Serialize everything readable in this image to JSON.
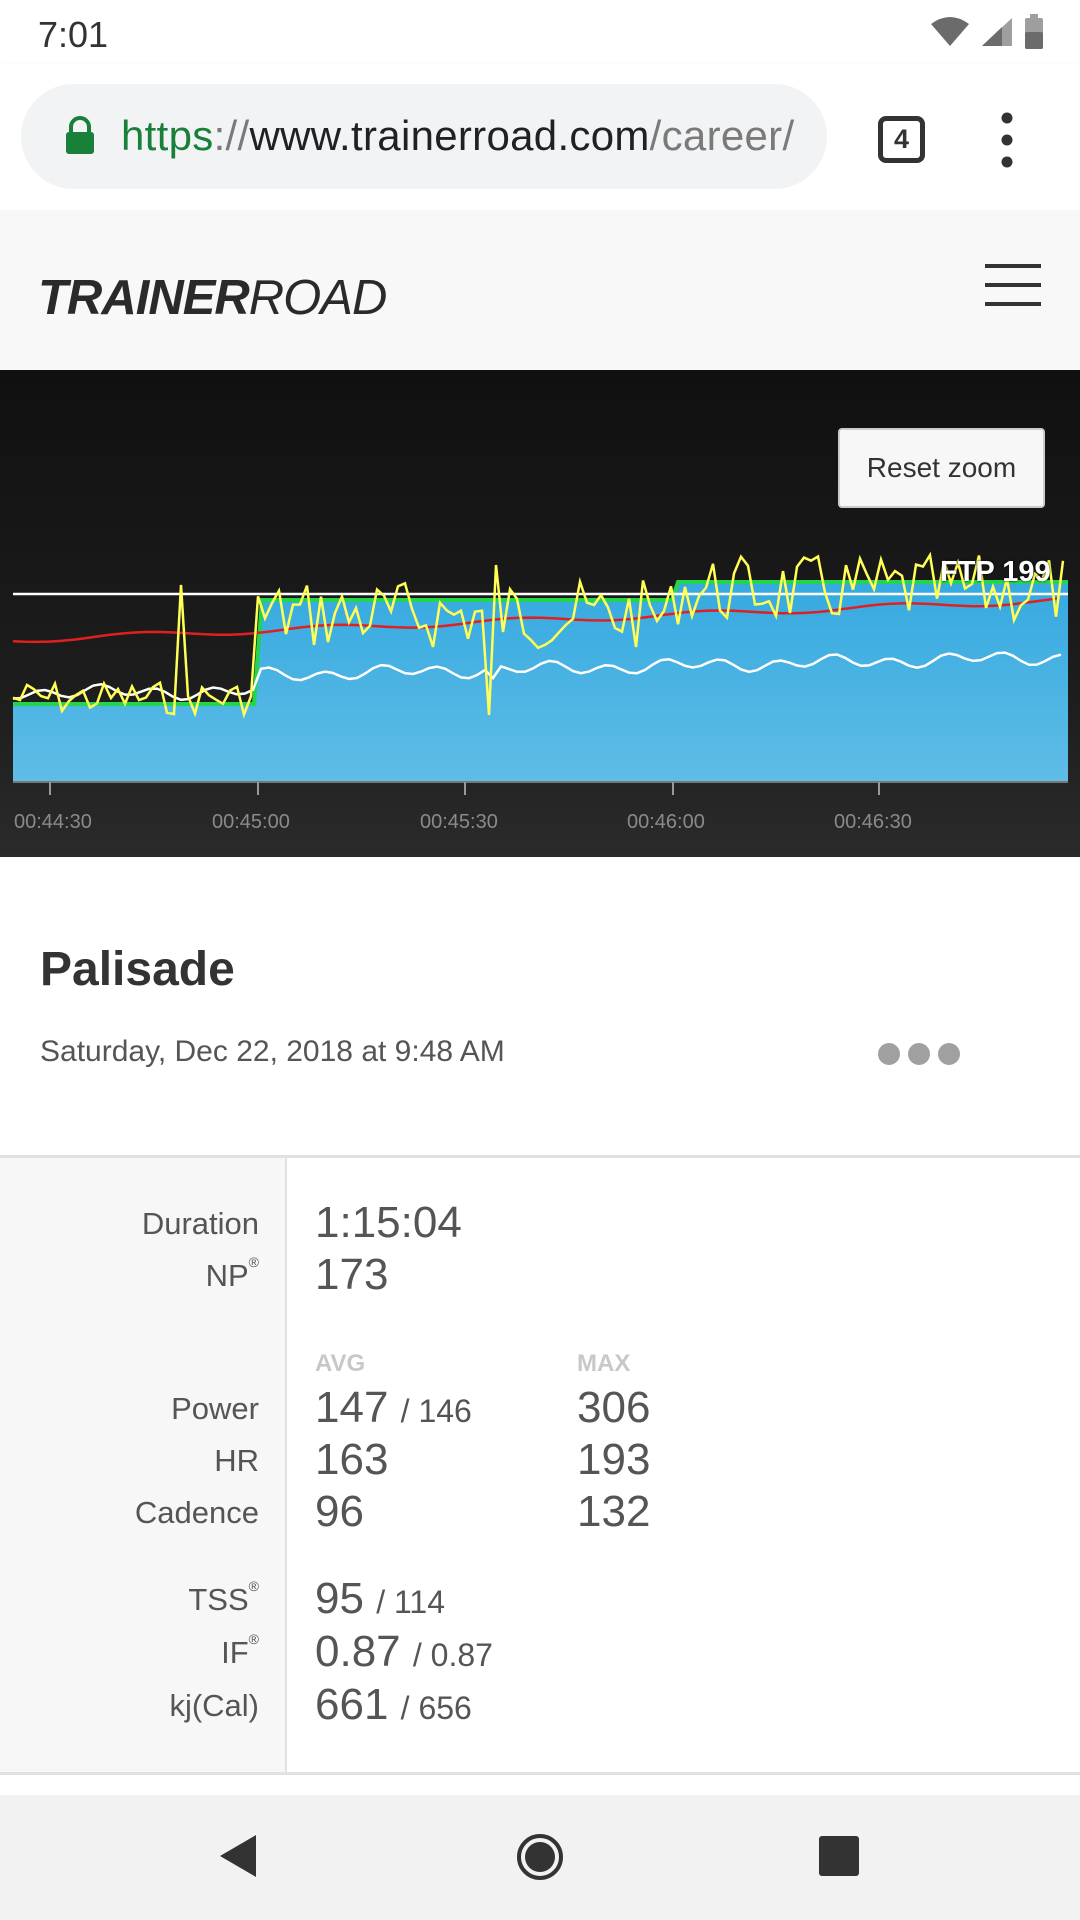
{
  "status_bar": {
    "time": "7:01",
    "icons": [
      "wifi-icon",
      "cell-signal-icon",
      "battery-icon"
    ]
  },
  "browser": {
    "url_scheme": "https",
    "url_separator": "://",
    "url_host": "www.trainerroad.com",
    "url_path": "/career/",
    "tab_count": "4"
  },
  "site": {
    "logo_bold": "TRAINER",
    "logo_light": "ROAD"
  },
  "chart": {
    "reset_zoom_label": "Reset zoom",
    "ftp_label": "FTP 199",
    "colors": {
      "target_area": "#35a9e0",
      "target_area_bottom": "#5fbde6",
      "target_outline": "#24d44a",
      "power": "#ffff55",
      "heart_rate": "#e02020",
      "cadence": "#ffffff",
      "ftp_line": "#ffffff"
    }
  },
  "chart_data": {
    "type": "line",
    "x_ticks": [
      "00:44:30",
      "00:45:00",
      "00:45:30",
      "00:46:00",
      "00:46:30"
    ],
    "ftp": 199,
    "series": []
  },
  "workout": {
    "title": "Palisade",
    "date": "Saturday, Dec 22, 2018 at 9:48 AM"
  },
  "stats": {
    "duration_label": "Duration",
    "duration_value": "1:15:04",
    "np_label": "NP",
    "np_value": "173",
    "registered_mark": "®",
    "avg_header": "AVG",
    "max_header": "MAX",
    "power_label": "Power",
    "power_avg": "147",
    "power_avg_target": "/ 146",
    "power_max": "306",
    "hr_label": "HR",
    "hr_avg": "163",
    "hr_max": "193",
    "cadence_label": "Cadence",
    "cadence_avg": "96",
    "cadence_max": "132",
    "tss_label": "TSS",
    "tss_value": "95",
    "tss_target": "/ 114",
    "if_label": "IF",
    "if_value": "0.87",
    "if_target": "/ 0.87",
    "kj_label": "kj(Cal)",
    "kj_value": "661",
    "kj_target": "/ 656"
  },
  "nav": {
    "icons": [
      "back-icon",
      "home-icon",
      "recents-icon"
    ]
  }
}
